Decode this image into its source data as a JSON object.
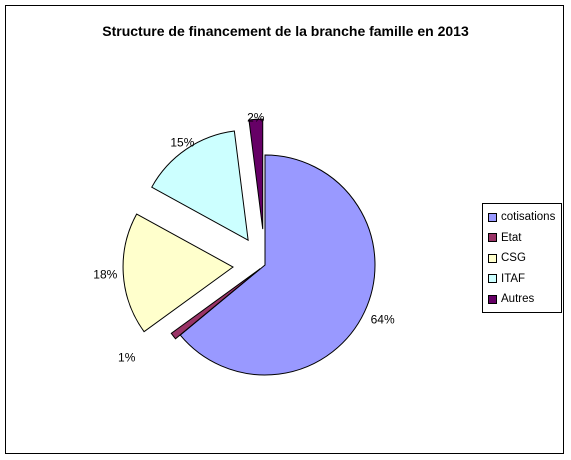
{
  "chart_data": {
    "type": "pie",
    "title": "Structure de financement de la branche famille en 2013",
    "exploded": true,
    "legend_position": "right",
    "slices": [
      {
        "name": "cotisations",
        "value": 64,
        "label": "64%",
        "color": "#9999FF"
      },
      {
        "name": "Etat",
        "value": 1,
        "label": "1%",
        "color": "#993366"
      },
      {
        "name": "CSG",
        "value": 18,
        "label": "18%",
        "color": "#FFFFCC"
      },
      {
        "name": "ITAF",
        "value": 15,
        "label": "15%",
        "color": "#CCFFFF"
      },
      {
        "name": "Autres",
        "value": 2,
        "label": "2%",
        "color": "#660066"
      }
    ]
  }
}
